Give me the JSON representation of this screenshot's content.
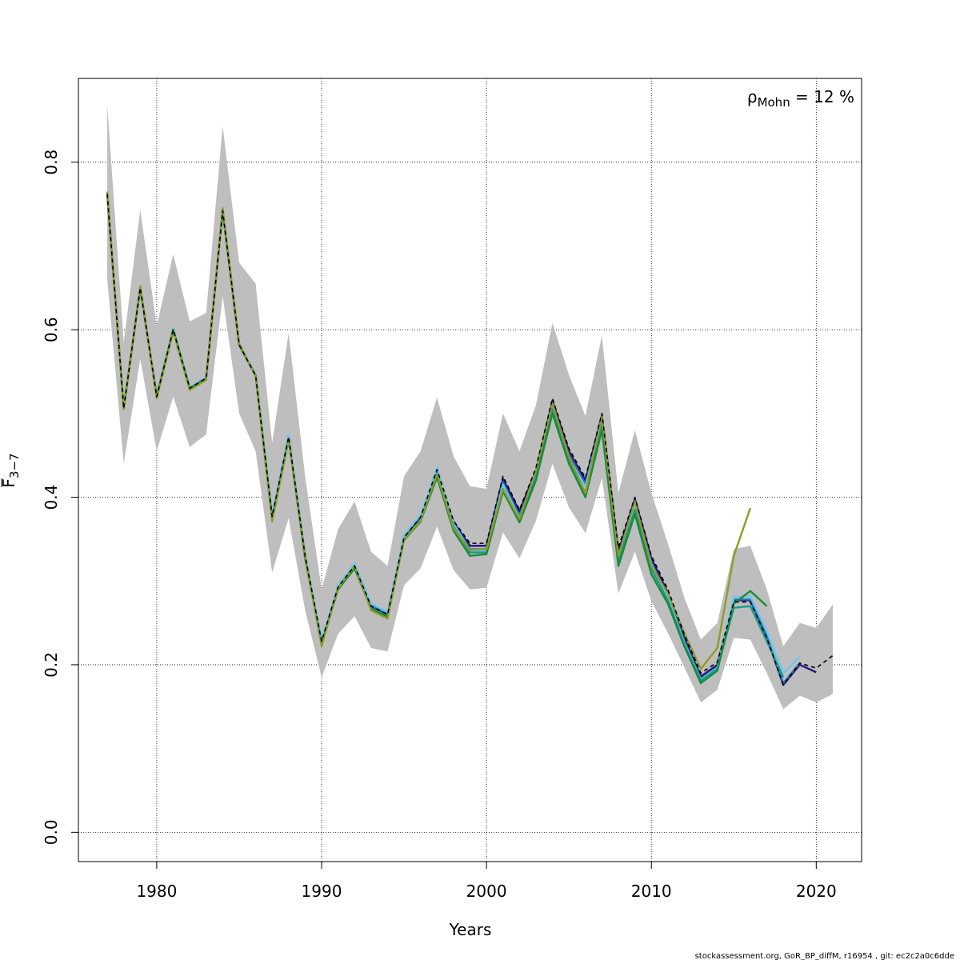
{
  "chart_data": {
    "type": "line",
    "xlabel": "Years",
    "ylabel_main": "F",
    "ylabel_sub": "3−7",
    "xlim": [
      1975.25,
      2022.75
    ],
    "ylim": [
      -0.035,
      0.9
    ],
    "x_ticks": [
      1980,
      1990,
      2000,
      2010,
      2020
    ],
    "y_ticks": [
      0.0,
      0.2,
      0.4,
      0.6,
      0.8
    ],
    "x_tick_labels": [
      "1980",
      "1990",
      "2000",
      "2010",
      "2020"
    ],
    "y_tick_labels": [
      "0.0",
      "0.2",
      "0.4",
      "0.6",
      "0.8"
    ],
    "grid": true,
    "annotation": {
      "symbol": "ρ",
      "subscript": "Mohn",
      "text": " = 12 %"
    },
    "confidence_band": {
      "color": "#bebebe",
      "x": [
        1977,
        1978,
        1979,
        1980,
        1981,
        1982,
        1983,
        1984,
        1985,
        1986,
        1987,
        1988,
        1989,
        1990,
        1991,
        1992,
        1993,
        1994,
        1995,
        1996,
        1997,
        1998,
        1999,
        2000,
        2001,
        2002,
        2003,
        2004,
        2005,
        2006,
        2007,
        2008,
        2009,
        2010,
        2011,
        2012,
        2013,
        2014,
        2015,
        2016,
        2017,
        2018,
        2019,
        2020,
        2021
      ],
      "lower": [
        0.66,
        0.44,
        0.565,
        0.455,
        0.52,
        0.46,
        0.475,
        0.64,
        0.5,
        0.455,
        0.31,
        0.375,
        0.265,
        0.185,
        0.237,
        0.258,
        0.22,
        0.216,
        0.295,
        0.315,
        0.365,
        0.313,
        0.29,
        0.292,
        0.358,
        0.327,
        0.372,
        0.44,
        0.388,
        0.357,
        0.423,
        0.285,
        0.335,
        0.276,
        0.238,
        0.197,
        0.155,
        0.17,
        0.232,
        0.23,
        0.19,
        0.147,
        0.163,
        0.155,
        0.165
      ],
      "upper": [
        0.868,
        0.585,
        0.743,
        0.605,
        0.69,
        0.61,
        0.62,
        0.843,
        0.68,
        0.655,
        0.465,
        0.596,
        0.425,
        0.29,
        0.362,
        0.395,
        0.335,
        0.318,
        0.425,
        0.455,
        0.519,
        0.449,
        0.413,
        0.41,
        0.5,
        0.455,
        0.51,
        0.608,
        0.546,
        0.497,
        0.593,
        0.405,
        0.48,
        0.405,
        0.345,
        0.28,
        0.23,
        0.25,
        0.338,
        0.342,
        0.29,
        0.222,
        0.25,
        0.244,
        0.272
      ]
    },
    "series": [
      {
        "color": "#000000",
        "dashed": true,
        "x": [
          1977,
          1978,
          1979,
          1980,
          1981,
          1982,
          1983,
          1984,
          1985,
          1986,
          1987,
          1988,
          1989,
          1990,
          1991,
          1992,
          1993,
          1994,
          1995,
          1996,
          1997,
          1998,
          1999,
          2000,
          2001,
          2002,
          2003,
          2004,
          2005,
          2006,
          2007,
          2008,
          2009,
          2010,
          2011,
          2012,
          2013,
          2014,
          2015,
          2016,
          2017,
          2018,
          2019,
          2020,
          2021
        ],
        "values": [
          0.762,
          0.506,
          0.65,
          0.52,
          0.6,
          0.53,
          0.542,
          0.742,
          0.582,
          0.545,
          0.377,
          0.472,
          0.33,
          0.228,
          0.293,
          0.318,
          0.27,
          0.26,
          0.352,
          0.376,
          0.433,
          0.372,
          0.345,
          0.345,
          0.425,
          0.385,
          0.435,
          0.518,
          0.458,
          0.423,
          0.5,
          0.34,
          0.4,
          0.33,
          0.29,
          0.236,
          0.19,
          0.203,
          0.275,
          0.275,
          0.232,
          0.176,
          0.202,
          0.196,
          0.211
        ]
      },
      {
        "color": "#27187e",
        "x": [
          1977,
          1978,
          1979,
          1980,
          1981,
          1982,
          1983,
          1984,
          1985,
          1986,
          1987,
          1988,
          1989,
          1990,
          1991,
          1992,
          1993,
          1994,
          1995,
          1996,
          1997,
          1998,
          1999,
          2000,
          2001,
          2002,
          2003,
          2004,
          2005,
          2006,
          2007,
          2008,
          2009,
          2010,
          2011,
          2012,
          2013,
          2014,
          2015,
          2016,
          2017,
          2018,
          2019,
          2020
        ],
        "values": [
          0.762,
          0.506,
          0.65,
          0.52,
          0.6,
          0.53,
          0.542,
          0.742,
          0.582,
          0.545,
          0.376,
          0.471,
          0.329,
          0.227,
          0.292,
          0.317,
          0.269,
          0.259,
          0.351,
          0.375,
          0.432,
          0.37,
          0.342,
          0.342,
          0.422,
          0.383,
          0.432,
          0.515,
          0.455,
          0.42,
          0.498,
          0.335,
          0.398,
          0.327,
          0.286,
          0.232,
          0.186,
          0.2,
          0.277,
          0.277,
          0.233,
          0.176,
          0.2,
          0.191
        ]
      },
      {
        "color": "#1f78b4",
        "x": [
          1977,
          1978,
          1979,
          1980,
          1981,
          1982,
          1983,
          1984,
          1985,
          1986,
          1987,
          1988,
          1989,
          1990,
          1991,
          1992,
          1993,
          1994,
          1995,
          1996,
          1997,
          1998,
          1999,
          2000,
          2001,
          2002,
          2003,
          2004,
          2005,
          2006,
          2007,
          2008,
          2009,
          2010,
          2011,
          2012,
          2013,
          2014,
          2015,
          2016,
          2017,
          2018,
          2019
        ],
        "values": [
          0.763,
          0.507,
          0.651,
          0.521,
          0.601,
          0.531,
          0.543,
          0.743,
          0.583,
          0.546,
          0.378,
          0.474,
          0.331,
          0.229,
          0.294,
          0.32,
          0.272,
          0.262,
          0.354,
          0.378,
          0.435,
          0.369,
          0.338,
          0.338,
          0.418,
          0.378,
          0.428,
          0.51,
          0.45,
          0.415,
          0.495,
          0.33,
          0.393,
          0.322,
          0.282,
          0.228,
          0.183,
          0.197,
          0.278,
          0.278,
          0.234,
          0.178,
          0.202
        ]
      },
      {
        "color": "#6ec6f0",
        "x": [
          1977,
          1978,
          1979,
          1980,
          1981,
          1982,
          1983,
          1984,
          1985,
          1986,
          1987,
          1988,
          1989,
          1990,
          1991,
          1992,
          1993,
          1994,
          1995,
          1996,
          1997,
          1998,
          1999,
          2000,
          2001,
          2002,
          2003,
          2004,
          2005,
          2006,
          2007,
          2008,
          2009,
          2010,
          2011,
          2012,
          2013,
          2014,
          2015,
          2016,
          2017,
          2018,
          2019
        ],
        "values": [
          0.763,
          0.507,
          0.651,
          0.521,
          0.601,
          0.531,
          0.543,
          0.743,
          0.583,
          0.546,
          0.379,
          0.475,
          0.332,
          0.23,
          0.295,
          0.321,
          0.273,
          0.263,
          0.355,
          0.379,
          0.436,
          0.368,
          0.336,
          0.336,
          0.415,
          0.375,
          0.425,
          0.507,
          0.447,
          0.412,
          0.492,
          0.327,
          0.39,
          0.32,
          0.28,
          0.226,
          0.182,
          0.196,
          0.281,
          0.282,
          0.24,
          0.19,
          0.21
        ]
      },
      {
        "color": "#1a9a8a",
        "x": [
          1977,
          1978,
          1979,
          1980,
          1981,
          1982,
          1983,
          1984,
          1985,
          1986,
          1987,
          1988,
          1989,
          1990,
          1991,
          1992,
          1993,
          1994,
          1995,
          1996,
          1997,
          1998,
          1999,
          2000,
          2001,
          2002,
          2003,
          2004,
          2005,
          2006,
          2007,
          2008,
          2009,
          2010,
          2011,
          2012,
          2013,
          2014,
          2015,
          2016,
          2017,
          2018
        ],
        "values": [
          0.762,
          0.506,
          0.65,
          0.52,
          0.6,
          0.53,
          0.542,
          0.742,
          0.582,
          0.545,
          0.375,
          0.47,
          0.328,
          0.226,
          0.291,
          0.316,
          0.268,
          0.258,
          0.35,
          0.373,
          0.428,
          0.365,
          0.334,
          0.334,
          0.41,
          0.372,
          0.424,
          0.505,
          0.443,
          0.405,
          0.487,
          0.323,
          0.385,
          0.314,
          0.277,
          0.224,
          0.181,
          0.195,
          0.268,
          0.27,
          0.228,
          0.185
        ]
      },
      {
        "color": "#1b8a3a",
        "x": [
          1977,
          1978,
          1979,
          1980,
          1981,
          1982,
          1983,
          1984,
          1985,
          1986,
          1987,
          1988,
          1989,
          1990,
          1991,
          1992,
          1993,
          1994,
          1995,
          1996,
          1997,
          1998,
          1999,
          2000,
          2001,
          2002,
          2003,
          2004,
          2005,
          2006,
          2007,
          2008,
          2009,
          2010,
          2011,
          2012,
          2013,
          2014,
          2015,
          2016,
          2017
        ],
        "values": [
          0.762,
          0.506,
          0.65,
          0.52,
          0.6,
          0.53,
          0.542,
          0.742,
          0.582,
          0.545,
          0.374,
          0.469,
          0.327,
          0.225,
          0.29,
          0.315,
          0.267,
          0.257,
          0.349,
          0.371,
          0.424,
          0.36,
          0.33,
          0.332,
          0.407,
          0.37,
          0.42,
          0.5,
          0.44,
          0.4,
          0.48,
          0.318,
          0.38,
          0.308,
          0.273,
          0.222,
          0.178,
          0.193,
          0.273,
          0.288,
          0.27
        ]
      },
      {
        "color": "#8f9b2a",
        "x": [
          1977,
          1978,
          1979,
          1980,
          1981,
          1982,
          1983,
          1984,
          1985,
          1986,
          1987,
          1988,
          1989,
          1990,
          1991,
          1992,
          1993,
          1994,
          1995,
          1996,
          1997,
          1998,
          1999,
          2000,
          2001,
          2002,
          2003,
          2004,
          2005,
          2006,
          2007,
          2008,
          2009,
          2010,
          2011,
          2012,
          2013,
          2014,
          2015,
          2016
        ],
        "values": [
          0.765,
          0.505,
          0.652,
          0.518,
          0.598,
          0.528,
          0.54,
          0.745,
          0.584,
          0.544,
          0.371,
          0.468,
          0.33,
          0.222,
          0.292,
          0.318,
          0.265,
          0.255,
          0.35,
          0.372,
          0.428,
          0.363,
          0.337,
          0.338,
          0.41,
          0.374,
          0.432,
          0.512,
          0.448,
          0.405,
          0.497,
          0.33,
          0.395,
          0.318,
          0.285,
          0.238,
          0.195,
          0.22,
          0.33,
          0.387
        ]
      }
    ]
  },
  "footer": "stockassessment.org, GoR_BP_diffM, r16954 , git: ec2c2a0c6dde"
}
